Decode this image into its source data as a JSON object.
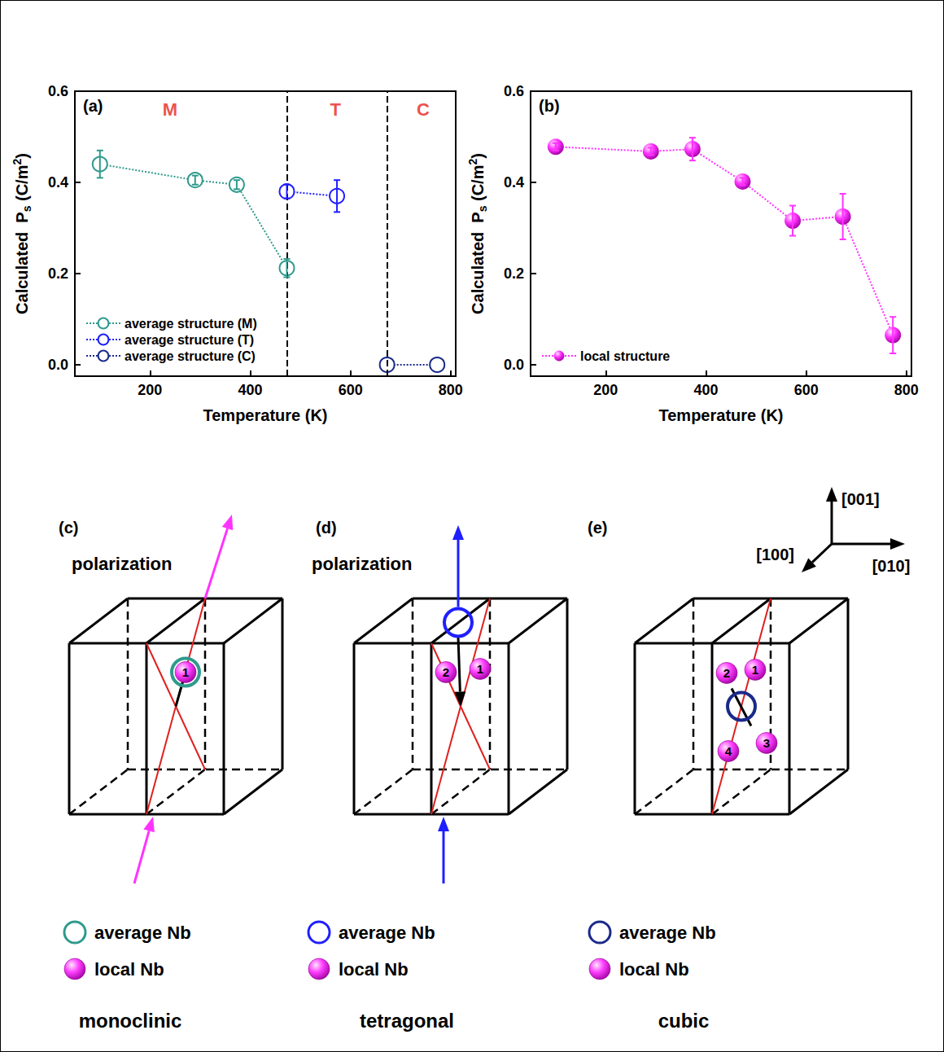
{
  "chart_data": [
    {
      "panel": "(a)",
      "type": "line",
      "xlabel": "Temperature (K)",
      "ylabel": [
        "Calculated  P",
        {
          "sub": "s"
        },
        " (C/m",
        {
          "sup": "2"
        },
        ")"
      ],
      "xlim": [
        50,
        810
      ],
      "xticks": [
        200,
        400,
        600,
        800
      ],
      "ylim": [
        -0.025,
        0.6
      ],
      "yticks": [
        {
          "value": 0,
          "label": "0.0"
        },
        0.2,
        0.4,
        0.6
      ],
      "legend": "lower left",
      "series": [
        {
          "name": "average structure (M)",
          "color": "#2f9a8c",
          "marker": "open_circle",
          "line_style": "dotted",
          "x": [
            100,
            290,
            373,
            473
          ],
          "values": [
            0.44,
            0.405,
            0.395,
            0.212
          ],
          "errors": [
            0.03,
            0.01,
            0.01,
            0.02
          ]
        },
        {
          "name": "average structure (T)",
          "color": "#1f1fff",
          "marker": "open_circle",
          "line_style": "dotted",
          "x": [
            473,
            573
          ],
          "values": [
            0.38,
            0.37
          ],
          "errors": [
            0.015,
            0.035
          ]
        },
        {
          "name": "average structure (C)",
          "color": "#1a2a8a",
          "marker": "open_circle",
          "line_style": "dotted",
          "x": [
            673,
            773
          ],
          "values": [
            0,
            0
          ]
        }
      ],
      "vlines": [
        473,
        673
      ],
      "annotations": [
        {
          "text": "M",
          "x": 240,
          "y": 0.56,
          "color": "#e8221b"
        },
        {
          "text": "T",
          "x": 570,
          "y": 0.56,
          "color": "#e8221b"
        },
        {
          "text": "C",
          "x": 745,
          "y": 0.56,
          "color": "#e8221b"
        }
      ]
    },
    {
      "panel": "(b)",
      "type": "line",
      "xlabel": "Temperature (K)",
      "ylabel": [
        "Calculated  P",
        {
          "sub": "s"
        },
        " (C/m",
        {
          "sup": "2"
        },
        ")"
      ],
      "xlim": [
        50,
        810
      ],
      "xticks": [
        200,
        400,
        600,
        800
      ],
      "ylim": [
        -0.025,
        0.6
      ],
      "yticks": [
        {
          "value": 0,
          "label": "0.0"
        },
        0.2,
        0.4,
        0.6
      ],
      "legend": "lower left",
      "series": [
        {
          "name": "local structure",
          "color": "#ff33ff",
          "marker": "sphere",
          "line_style": "dotted",
          "x": [
            100,
            290,
            373,
            473,
            573,
            673,
            773
          ],
          "values": [
            0.478,
            0.468,
            0.473,
            0.402,
            0.316,
            0.325,
            0.065
          ],
          "errors": [
            0.008,
            0.008,
            0.025,
            0.008,
            0.033,
            0.05,
            0.04
          ]
        }
      ]
    }
  ],
  "diagram": {
    "axes": {
      "up": "[001]",
      "right": "[010]",
      "front": "[100]"
    },
    "panels": [
      {
        "panel": "(c)",
        "polarization": "polarization",
        "polarization_direction": "tilted",
        "polarization_color": "#ff33ff",
        "local_Nb": [
          "1"
        ],
        "average_label": "average Nb",
        "average_color": "#2f9a8c",
        "local_label": "local Nb",
        "caption": "monoclinic"
      },
      {
        "panel": "(d)",
        "polarization": "polarization",
        "polarization_direction": "vertical",
        "polarization_color": "#1f1fff",
        "local_Nb": [
          "1",
          "2"
        ],
        "average_label": "average Nb",
        "average_color": "#1f1fff",
        "local_label": "local Nb",
        "caption": "tetragonal"
      },
      {
        "panel": "(e)",
        "local_Nb": [
          "1",
          "2",
          "3",
          "4"
        ],
        "average_label": "average Nb",
        "average_color": "#1a2a8a",
        "local_label": "local Nb",
        "caption": "cubic"
      }
    ]
  }
}
